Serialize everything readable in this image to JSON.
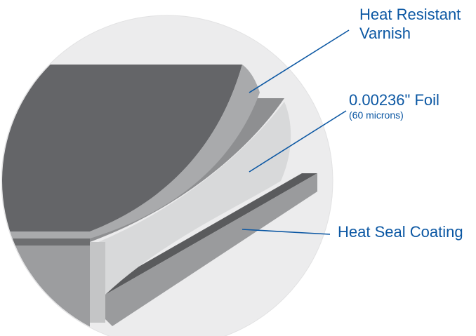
{
  "labels": {
    "varnish_line1": "Heat Resistant",
    "varnish_line2": "Varnish",
    "foil_main": "0.00236\" Foil",
    "foil_sub": "(60 microns)",
    "heat_seal": "Heat Seal Coating"
  },
  "layers": [
    {
      "name": "Heat Resistant Varnish"
    },
    {
      "name": "Foil"
    },
    {
      "name": "Heat Seal Coating"
    }
  ],
  "colors": {
    "callout": "#0b57a3",
    "varnish_top": "#646568",
    "varnish_edge": "#a9aaac",
    "foil_side": "#d8d9da",
    "foil_top": "#8e8f91",
    "seal_top": "#5a5b5d",
    "seal_side": "#9a9b9d",
    "circle_bg": "#ececed"
  }
}
